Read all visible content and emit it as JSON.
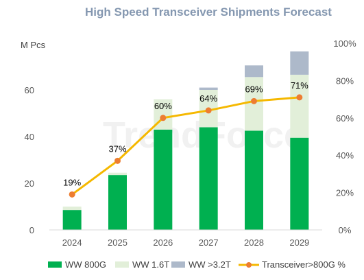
{
  "chart_data": {
    "type": "bar",
    "stacked": true,
    "title": "High Speed Transceiver Shipments Forecast",
    "ylabel": "M Pcs",
    "watermark": "TrendForce",
    "categories": [
      "2024",
      "2025",
      "2026",
      "2027",
      "2028",
      "2029"
    ],
    "ylim": [
      0,
      80
    ],
    "y_ticks": [
      0,
      20,
      40,
      60
    ],
    "y2lim": [
      0,
      1
    ],
    "y2_ticks": [
      "0%",
      "20%",
      "40%",
      "60%",
      "80%",
      "100%"
    ],
    "series": [
      {
        "name": "WW 800G",
        "type": "bar",
        "color": "#00b050",
        "values": [
          8.5,
          23.5,
          43,
          44,
          42.5,
          39.5
        ]
      },
      {
        "name": "WW 1.6T",
        "type": "bar",
        "color": "#e2efd9",
        "values": [
          1.5,
          1,
          13,
          16,
          23,
          27
        ]
      },
      {
        "name": "WW >3.2T",
        "type": "bar",
        "color": "#adb9ca",
        "values": [
          0,
          0,
          0,
          1,
          5,
          10
        ]
      },
      {
        "name": "Transceiver>800G %",
        "type": "line",
        "axis": "secondary",
        "color": "#f5b800",
        "marker_color": "#ed7d31",
        "values": [
          0.19,
          0.37,
          0.6,
          0.64,
          0.69,
          0.71
        ],
        "labels": [
          "19%",
          "37%",
          "60%",
          "64%",
          "69%",
          "71%"
        ]
      }
    ],
    "grid": false,
    "legend": "bottom"
  }
}
